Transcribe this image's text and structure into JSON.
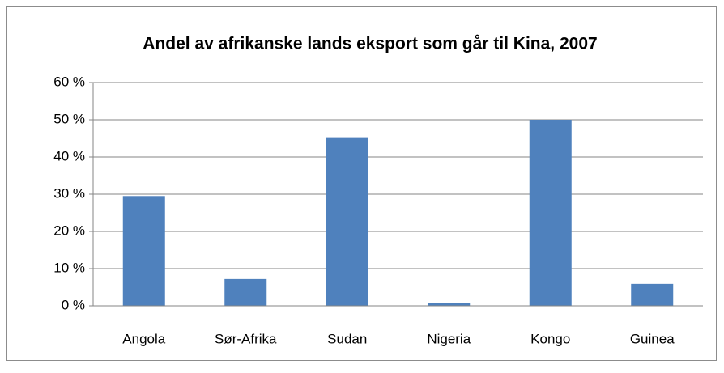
{
  "chart_data": {
    "type": "bar",
    "title": "Andel av afrikanske lands eksport som går til Kina, 2007",
    "categories": [
      "Angola",
      "Sør-Afrika",
      "Sudan",
      "Nigeria",
      "Kongo",
      "Guinea"
    ],
    "values": [
      29.5,
      7.2,
      45.3,
      0.7,
      50,
      5.9
    ],
    "color": "#4f81bd",
    "ylim": [
      0,
      60
    ],
    "yticks": [
      {
        "value": 0,
        "label": "0 %"
      },
      {
        "value": 10,
        "label": "10 %"
      },
      {
        "value": 20,
        "label": "20 %"
      },
      {
        "value": 30,
        "label": "30 %"
      },
      {
        "value": 40,
        "label": "40 %"
      },
      {
        "value": 50,
        "label": "50 %"
      },
      {
        "value": 60,
        "label": "60 %"
      }
    ],
    "grid": true
  }
}
